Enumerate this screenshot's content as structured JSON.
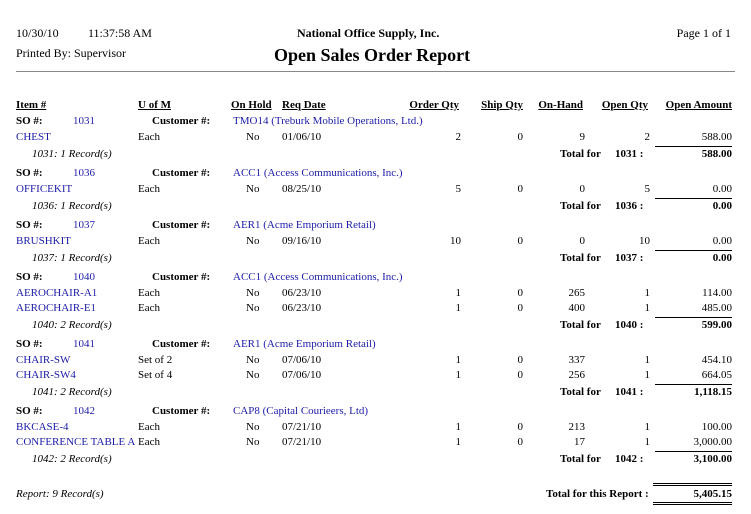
{
  "header": {
    "date": "10/30/10",
    "time": "11:37:58 AM",
    "company": "National Office Supply, Inc.",
    "page": "Page 1 of 1",
    "printed_by": "Printed By: Supervisor",
    "title": "Open Sales Order Report"
  },
  "columns": [
    "Item #",
    "U of M",
    "On Hold",
    "Req Date",
    "Order Qty",
    "Ship Qty",
    "On-Hand",
    "Open Qty",
    "Open Amount"
  ],
  "orders": [
    {
      "so_label": "SO #:",
      "so": "1031",
      "customer_label": "Customer #:",
      "customer": "TMO14 (Treburk Mobile Operations, Ltd.)",
      "lines": [
        [
          "CHEST",
          "Each",
          "No",
          "01/06/10",
          "2",
          "0",
          "9",
          "2",
          "588.00"
        ]
      ],
      "records": "1031: 1 Record(s)",
      "total_label": "Total for",
      "total_so": "1031 :",
      "total": "588.00"
    },
    {
      "so_label": "SO #:",
      "so": "1036",
      "customer_label": "Customer #:",
      "customer": "ACC1 (Access Communications, Inc.)",
      "lines": [
        [
          "OFFICEKIT",
          "Each",
          "No",
          "08/25/10",
          "5",
          "0",
          "0",
          "5",
          "0.00"
        ]
      ],
      "records": "1036: 1 Record(s)",
      "total_label": "Total for",
      "total_so": "1036 :",
      "total": "0.00"
    },
    {
      "so_label": "SO #:",
      "so": "1037",
      "customer_label": "Customer #:",
      "customer": "AER1 (Acme Emporium Retail)",
      "lines": [
        [
          "BRUSHKIT",
          "Each",
          "No",
          "09/16/10",
          "10",
          "0",
          "0",
          "10",
          "0.00"
        ]
      ],
      "records": "1037: 1 Record(s)",
      "total_label": "Total for",
      "total_so": "1037 :",
      "total": "0.00"
    },
    {
      "so_label": "SO #:",
      "so": "1040",
      "customer_label": "Customer #:",
      "customer": "ACC1 (Access Communications, Inc.)",
      "lines": [
        [
          "AEROCHAIR-A1",
          "Each",
          "No",
          "06/23/10",
          "1",
          "0",
          "265",
          "1",
          "114.00"
        ],
        [
          "AEROCHAIR-E1",
          "Each",
          "No",
          "06/23/10",
          "1",
          "0",
          "400",
          "1",
          "485.00"
        ]
      ],
      "records": "1040: 2 Record(s)",
      "total_label": "Total for",
      "total_so": "1040 :",
      "total": "599.00"
    },
    {
      "so_label": "SO #:",
      "so": "1041",
      "customer_label": "Customer #:",
      "customer": "AER1 (Acme Emporium Retail)",
      "lines": [
        [
          "CHAIR-SW",
          "Set of 2",
          "No",
          "07/06/10",
          "1",
          "0",
          "337",
          "1",
          "454.10"
        ],
        [
          "CHAIR-SW4",
          "Set of 4",
          "No",
          "07/06/10",
          "1",
          "0",
          "256",
          "1",
          "664.05"
        ]
      ],
      "records": "1041: 2 Record(s)",
      "total_label": "Total for",
      "total_so": "1041 :",
      "total": "1,118.15"
    },
    {
      "so_label": "SO #:",
      "so": "1042",
      "customer_label": "Customer #:",
      "customer": "CAP8 (Capital Courieers, Ltd)",
      "lines": [
        [
          "BKCASE-4",
          "Each",
          "No",
          "07/21/10",
          "1",
          "0",
          "213",
          "1",
          "100.00"
        ],
        [
          "CONFERENCE TABLE A",
          "Each",
          "No",
          "07/21/10",
          "1",
          "0",
          "17",
          "1",
          "3,000.00"
        ]
      ],
      "records": "1042: 2 Record(s)",
      "total_label": "Total for",
      "total_so": "1042 :",
      "total": "3,100.00"
    }
  ],
  "footer": {
    "records": "Report: 9 Record(s)",
    "total_label": "Total for this Report :",
    "total": "5,405.15"
  }
}
